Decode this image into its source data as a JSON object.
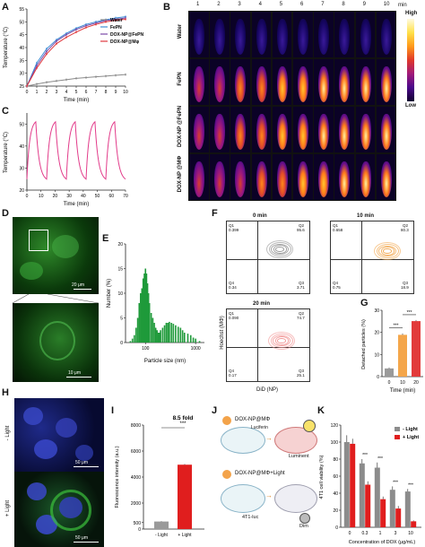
{
  "panel_labels": [
    "A",
    "B",
    "C",
    "D",
    "E",
    "F",
    "G",
    "H",
    "I",
    "J",
    "K"
  ],
  "panelA": {
    "ylabel": "Temperature (°C)",
    "xlabel": "Time (min)",
    "x_ticks": [
      "0",
      "1",
      "2",
      "3",
      "4",
      "5",
      "6",
      "7",
      "8",
      "9",
      "10"
    ],
    "y_ticks": [
      "25",
      "30",
      "35",
      "40",
      "45",
      "50",
      "55"
    ],
    "legend": [
      "Water",
      "FePN",
      "DOX-NP@FePN",
      "DOX-NP@Mφ"
    ]
  },
  "panelB": {
    "columns": [
      "1",
      "2",
      "3",
      "4",
      "5",
      "6",
      "7",
      "8",
      "9",
      "10"
    ],
    "unit": "min",
    "rows": [
      "Water",
      "FePN",
      "DOX-NP @FePN",
      "DOX-NP @MΦ"
    ],
    "scale_high": "High",
    "scale_low": "Low"
  },
  "panelC": {
    "ylabel": "Temperature (°C)",
    "xlabel": "Time (min)",
    "x_ticks": [
      "0",
      "10",
      "20",
      "30",
      "40",
      "50",
      "60",
      "70"
    ],
    "y_ticks": [
      "20",
      "30",
      "40",
      "50"
    ]
  },
  "panelD": {
    "scale_top": "20 μm",
    "scale_bottom": "10 μm"
  },
  "panelE": {
    "ylabel": "Number (%)",
    "xlabel": "Particle size (nm)",
    "y_ticks": [
      "0",
      "5",
      "10",
      "15",
      "20"
    ],
    "x_ticks": [
      "100",
      "1000"
    ]
  },
  "panelF": {
    "titles": [
      "0 min",
      "10 min",
      "20 min"
    ],
    "ylabel": "Hoechst (MΦ)",
    "xlabel": "DiD (NP)",
    "plots": [
      {
        "q1": "Q1",
        "q1v": "0.399",
        "q2": "Q2",
        "q2v": "95.6",
        "q3": "Q3",
        "q3v": "3.71",
        "q4": "Q4",
        "q4v": "0.34"
      },
      {
        "q1": "Q1",
        "q1v": "0.658",
        "q2": "Q2",
        "q2v": "80.3",
        "q3": "Q3",
        "q3v": "18.9",
        "q4": "Q4",
        "q4v": "0.75"
      },
      {
        "q1": "Q1",
        "q1v": "0.090",
        "q2": "Q2",
        "q2v": "74.7",
        "q3": "Q3",
        "q3v": "25.1",
        "q4": "Q4",
        "q4v": "0.17"
      }
    ]
  },
  "panelG": {
    "ylabel": "Detached particles (%)",
    "xlabel": "Time (min)",
    "y_ticks": [
      "0",
      "10",
      "20",
      "30"
    ],
    "sig": [
      "***",
      "***"
    ]
  },
  "panelH": {
    "row_labels": [
      "- Light",
      "+ Light"
    ],
    "scale": "50 μm"
  },
  "panelI": {
    "ylabel": "Fluorescence intensity (a.u.)",
    "y_ticks": [
      "0",
      "500",
      "2000",
      "4000",
      "6000",
      "8000"
    ],
    "annotation": "8.5 fold",
    "sig": "***"
  },
  "panelJ": {
    "top_label": "DOX-NP@MΦ",
    "top_result": "Luminent",
    "bottom_label": "DOX-NP@MΦ+Light",
    "cell_label": "4T1-luc",
    "bottom_result": "Dim",
    "reagent": "Luciferin"
  },
  "panelK": {
    "ylabel": "4T1 cell viability (%)",
    "xlabel": "Concentration of DOX (μg/mL)",
    "y_ticks": [
      "0",
      "20",
      "40",
      "60",
      "80",
      "100",
      "120"
    ],
    "legend": [
      "- Light",
      "+ Light"
    ],
    "sig": [
      "***",
      "***",
      "***",
      "***",
      "***"
    ]
  },
  "chart_data": [
    {
      "type": "line",
      "panel": "A",
      "x": [
        0,
        1,
        2,
        3,
        4,
        5,
        6,
        7,
        8,
        9,
        10
      ],
      "series": [
        {
          "name": "Water",
          "color": "#8a8a8a",
          "values": [
            25,
            25.8,
            26.5,
            27,
            27.5,
            28,
            28.3,
            28.6,
            28.9,
            29.2,
            29.5
          ]
        },
        {
          "name": "FePN",
          "color": "#3f8fd6",
          "values": [
            25,
            34,
            39.5,
            43,
            45.5,
            47.5,
            49,
            50,
            50.8,
            51.5,
            52
          ]
        },
        {
          "name": "DOX-NP@FePN",
          "color": "#7a4aa8",
          "values": [
            25,
            33,
            38.5,
            42.5,
            45,
            47,
            48.5,
            49.5,
            50.5,
            51,
            51.5
          ]
        },
        {
          "name": "DOX-NP@Mφ",
          "color": "#e0393e",
          "values": [
            25,
            32,
            37.5,
            41.5,
            44,
            46,
            47.8,
            49,
            50,
            50.6,
            51
          ]
        }
      ],
      "ylim": [
        25,
        55
      ],
      "xlim": [
        0,
        10
      ]
    },
    {
      "type": "line",
      "panel": "C",
      "x": [
        0,
        10,
        20,
        30,
        40,
        50,
        60,
        70
      ],
      "series": [
        {
          "name": "",
          "color": "#e23b8a",
          "cycles": 5,
          "min": 25,
          "max": 51
        }
      ],
      "ylim": [
        20,
        55
      ],
      "xlim": [
        0,
        70
      ]
    },
    {
      "type": "bar",
      "panel": "E",
      "x": [
        50,
        55,
        60,
        65,
        70,
        75,
        80,
        85,
        90,
        95,
        100,
        105,
        110,
        115,
        120,
        130,
        140,
        150,
        160,
        170,
        180,
        190,
        200,
        220,
        240,
        260,
        280,
        300,
        330,
        360,
        400,
        450,
        500,
        550,
        600,
        700,
        800,
        900,
        1000,
        1200
      ],
      "values": [
        0.3,
        0.8,
        1.5,
        3,
        5,
        8,
        10,
        11,
        13,
        14,
        15,
        14,
        12,
        10,
        8,
        6,
        5,
        4,
        3,
        2.5,
        2,
        2,
        2.5,
        3,
        3.5,
        4,
        4,
        4.2,
        4,
        3.8,
        3.5,
        3.2,
        3,
        2.5,
        2,
        1.8,
        1.5,
        1,
        0.8,
        0.3
      ],
      "ylim": [
        0,
        20
      ],
      "xscale": "log"
    },
    {
      "type": "bar",
      "panel": "G",
      "categories": [
        "0",
        "10",
        "20"
      ],
      "values": [
        3.7,
        18.9,
        25.1
      ],
      "errors": [
        0.4,
        0.6,
        0.5
      ],
      "colors": [
        "#9a9a9a",
        "#f4a64a",
        "#e23b3b"
      ],
      "ylim": [
        0,
        30
      ]
    },
    {
      "type": "bar",
      "panel": "I",
      "categories": [
        "- Light",
        "+ Light"
      ],
      "values": [
        580,
        4950
      ],
      "errors": [
        30,
        60
      ],
      "colors": [
        "#9a9a9a",
        "#e01e1e"
      ],
      "ylim": [
        0,
        8000
      ]
    },
    {
      "type": "bar",
      "panel": "K",
      "categories": [
        "0",
        "0.3",
        "1",
        "3",
        "10"
      ],
      "series": [
        {
          "name": "- Light",
          "color": "#8c8c8c",
          "values": [
            100,
            75,
            70,
            44,
            42
          ],
          "errors": [
            8,
            5,
            6,
            4,
            3
          ]
        },
        {
          "name": "+ Light",
          "color": "#e01e1e",
          "values": [
            98,
            50,
            33,
            22,
            7
          ],
          "errors": [
            6,
            4,
            3,
            3,
            1
          ]
        }
      ],
      "ylim": [
        0,
        120
      ]
    }
  ]
}
